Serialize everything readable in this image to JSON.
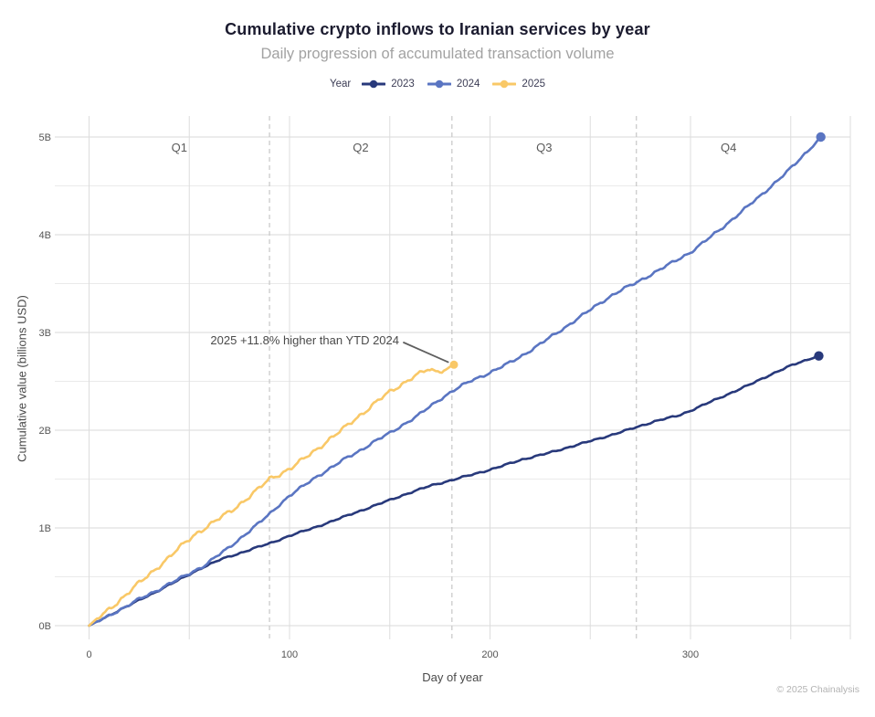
{
  "chart_data": {
    "type": "line",
    "title": "Cumulative crypto inflows to Iranian services by year",
    "subtitle": "Daily progression of accumulated transaction volume",
    "legend_title": "Year",
    "xlabel": "Day of year",
    "ylabel": "Cumulative value (billions USD)",
    "footer": "© 2025 Chainalysis",
    "x_ticks": [
      0,
      100,
      200,
      300
    ],
    "x_grid_step": 50,
    "x_domain": [
      0,
      380
    ],
    "ylim": [
      0,
      5
    ],
    "y_major": [
      0,
      1,
      2,
      3,
      4,
      5
    ],
    "y_tick_labels": [
      "0B",
      "1B",
      "2B",
      "3B",
      "4B",
      "5B"
    ],
    "y_minor": [
      0.5,
      1.5,
      2.5,
      3.5,
      4.5
    ],
    "grid": true,
    "legend_position": "top-center",
    "quarter_boundaries": [
      90,
      181,
      273
    ],
    "quarter_labels": [
      "Q1",
      "Q2",
      "Q3",
      "Q4"
    ],
    "annotation": {
      "text": "2025 +11.8% higher than YTD 2024",
      "series": "2025"
    },
    "series": [
      {
        "name": "2023",
        "color": "#28397b",
        "end_dot": true,
        "points": [
          [
            0,
            0
          ],
          [
            8,
            0.08
          ],
          [
            16,
            0.17
          ],
          [
            24,
            0.25
          ],
          [
            32,
            0.33
          ],
          [
            40,
            0.42
          ],
          [
            48,
            0.5
          ],
          [
            57,
            0.6
          ],
          [
            66,
            0.68
          ],
          [
            75,
            0.74
          ],
          [
            82,
            0.79
          ],
          [
            90,
            0.84
          ],
          [
            100,
            0.92
          ],
          [
            112,
            1.0
          ],
          [
            124,
            1.09
          ],
          [
            136,
            1.18
          ],
          [
            148,
            1.27
          ],
          [
            160,
            1.36
          ],
          [
            170,
            1.43
          ],
          [
            181,
            1.49
          ],
          [
            192,
            1.55
          ],
          [
            204,
            1.62
          ],
          [
            216,
            1.7
          ],
          [
            228,
            1.76
          ],
          [
            240,
            1.83
          ],
          [
            252,
            1.9
          ],
          [
            262,
            1.96
          ],
          [
            273,
            2.03
          ],
          [
            282,
            2.09
          ],
          [
            294,
            2.15
          ],
          [
            300,
            2.2
          ],
          [
            310,
            2.29
          ],
          [
            320,
            2.38
          ],
          [
            330,
            2.47
          ],
          [
            340,
            2.57
          ],
          [
            350,
            2.66
          ],
          [
            358,
            2.72
          ],
          [
            364,
            2.76
          ]
        ]
      },
      {
        "name": "2024",
        "color": "#5a75c2",
        "end_dot": true,
        "points": [
          [
            0,
            0
          ],
          [
            8,
            0.08
          ],
          [
            16,
            0.17
          ],
          [
            24,
            0.26
          ],
          [
            32,
            0.34
          ],
          [
            40,
            0.43
          ],
          [
            48,
            0.51
          ],
          [
            57,
            0.61
          ],
          [
            63,
            0.7
          ],
          [
            70,
            0.8
          ],
          [
            77,
            0.92
          ],
          [
            83,
            1.02
          ],
          [
            90,
            1.14
          ],
          [
            95,
            1.24
          ],
          [
            100,
            1.33
          ],
          [
            107,
            1.43
          ],
          [
            114,
            1.53
          ],
          [
            121,
            1.62
          ],
          [
            128,
            1.71
          ],
          [
            135,
            1.79
          ],
          [
            142,
            1.88
          ],
          [
            150,
            1.97
          ],
          [
            157,
            2.06
          ],
          [
            164,
            2.15
          ],
          [
            170,
            2.24
          ],
          [
            176,
            2.33
          ],
          [
            182,
            2.41
          ],
          [
            190,
            2.5
          ],
          [
            200,
            2.59
          ],
          [
            208,
            2.67
          ],
          [
            215,
            2.75
          ],
          [
            222,
            2.84
          ],
          [
            230,
            2.95
          ],
          [
            238,
            3.06
          ],
          [
            245,
            3.16
          ],
          [
            252,
            3.26
          ],
          [
            260,
            3.37
          ],
          [
            266,
            3.44
          ],
          [
            273,
            3.51
          ],
          [
            280,
            3.59
          ],
          [
            287,
            3.67
          ],
          [
            294,
            3.75
          ],
          [
            300,
            3.82
          ],
          [
            307,
            3.93
          ],
          [
            314,
            4.04
          ],
          [
            321,
            4.16
          ],
          [
            328,
            4.28
          ],
          [
            335,
            4.4
          ],
          [
            342,
            4.53
          ],
          [
            348,
            4.64
          ],
          [
            354,
            4.76
          ],
          [
            359,
            4.87
          ],
          [
            362,
            4.93
          ],
          [
            365,
            5.0
          ]
        ]
      },
      {
        "name": "2025",
        "color": "#f9c867",
        "end_dot": true,
        "points": [
          [
            0,
            0
          ],
          [
            6,
            0.1
          ],
          [
            12,
            0.2
          ],
          [
            18,
            0.31
          ],
          [
            24,
            0.42
          ],
          [
            30,
            0.52
          ],
          [
            36,
            0.63
          ],
          [
            42,
            0.74
          ],
          [
            48,
            0.85
          ],
          [
            54,
            0.95
          ],
          [
            60,
            1.03
          ],
          [
            66,
            1.11
          ],
          [
            72,
            1.19
          ],
          [
            78,
            1.29
          ],
          [
            84,
            1.39
          ],
          [
            90,
            1.5
          ],
          [
            96,
            1.56
          ],
          [
            102,
            1.63
          ],
          [
            108,
            1.72
          ],
          [
            114,
            1.81
          ],
          [
            120,
            1.91
          ],
          [
            126,
            2.0
          ],
          [
            132,
            2.1
          ],
          [
            138,
            2.2
          ],
          [
            144,
            2.3
          ],
          [
            150,
            2.39
          ],
          [
            156,
            2.47
          ],
          [
            161,
            2.54
          ],
          [
            165,
            2.58
          ],
          [
            169,
            2.62
          ],
          [
            172,
            2.6
          ],
          [
            175,
            2.61
          ],
          [
            178,
            2.62
          ],
          [
            182,
            2.67
          ]
        ]
      }
    ]
  }
}
